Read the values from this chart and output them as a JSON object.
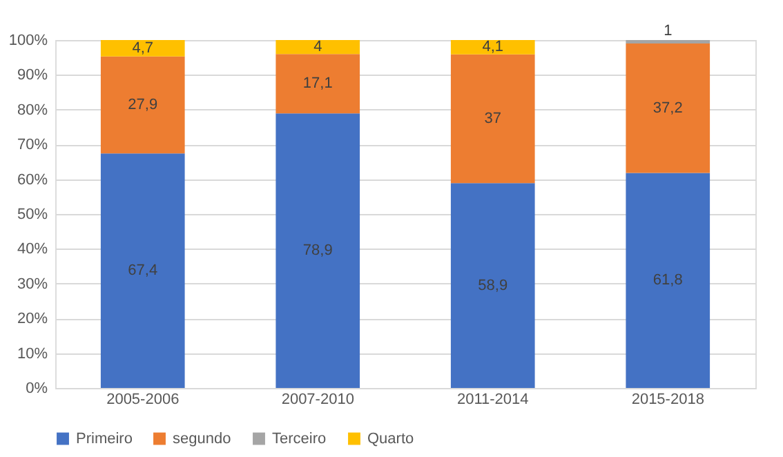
{
  "chart_data": {
    "type": "bar",
    "stacked": true,
    "categories": [
      "2005-2006",
      "2007-2010",
      "2011-2014",
      "2015-2018"
    ],
    "series": [
      {
        "name": "Primeiro",
        "color": "#4472c4",
        "values": [
          67.4,
          78.9,
          58.9,
          61.8
        ],
        "value_labels": [
          "67,4",
          "78,9",
          "58,9",
          "61,8"
        ]
      },
      {
        "name": "segundo",
        "color": "#ed7d31",
        "values": [
          27.9,
          17.1,
          37,
          37.2
        ],
        "value_labels": [
          "27,9",
          "17,1",
          "37",
          "37,2"
        ]
      },
      {
        "name": "Terceiro",
        "color": "#a5a5a5",
        "values": [
          null,
          null,
          null,
          1
        ],
        "value_labels": [
          null,
          null,
          null,
          "1"
        ]
      },
      {
        "name": "Quarto",
        "color": "#ffc000",
        "values": [
          4.7,
          4,
          4.1,
          null
        ],
        "value_labels": [
          "4,7",
          "4",
          "4,1",
          null
        ]
      }
    ],
    "ylim": [
      0,
      100
    ],
    "yticks": [
      {
        "value": 0,
        "label": "0%"
      },
      {
        "value": 10,
        "label": "10%"
      },
      {
        "value": 20,
        "label": "20%"
      },
      {
        "value": 30,
        "label": "30%"
      },
      {
        "value": 40,
        "label": "40%"
      },
      {
        "value": 50,
        "label": "50%"
      },
      {
        "value": 60,
        "label": "60%"
      },
      {
        "value": 70,
        "label": "70%"
      },
      {
        "value": 80,
        "label": "80%"
      },
      {
        "value": 90,
        "label": "90%"
      },
      {
        "value": 100,
        "label": "100%"
      }
    ],
    "grid": "y",
    "legend": "bottom"
  }
}
